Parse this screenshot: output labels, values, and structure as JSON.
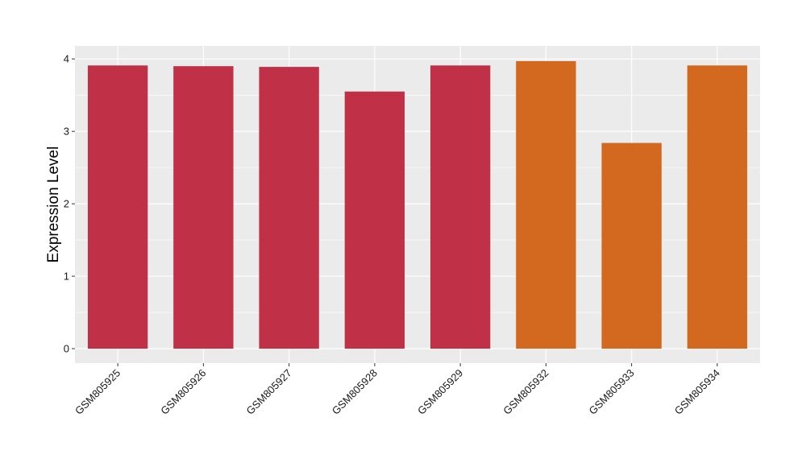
{
  "chart_data": {
    "type": "bar",
    "title": "",
    "xlabel": "",
    "ylabel": "Expression Level",
    "ylim": [
      -0.2,
      4.18
    ],
    "yticks": [
      0,
      1,
      2,
      3,
      4
    ],
    "grid": true,
    "legend": "none",
    "categories": [
      "GSM805925",
      "GSM805926",
      "GSM805927",
      "GSM805928",
      "GSM805929",
      "GSM805932",
      "GSM805933",
      "GSM805934"
    ],
    "values": [
      3.91,
      3.9,
      3.89,
      3.55,
      3.91,
      3.97,
      2.84,
      3.91
    ],
    "colors": [
      "#c03047",
      "#c03047",
      "#c03047",
      "#c03047",
      "#c03047",
      "#d2691e",
      "#d2691e",
      "#d2691e"
    ],
    "panel_background": "#ebebeb",
    "grid_color": "#ffffff"
  }
}
